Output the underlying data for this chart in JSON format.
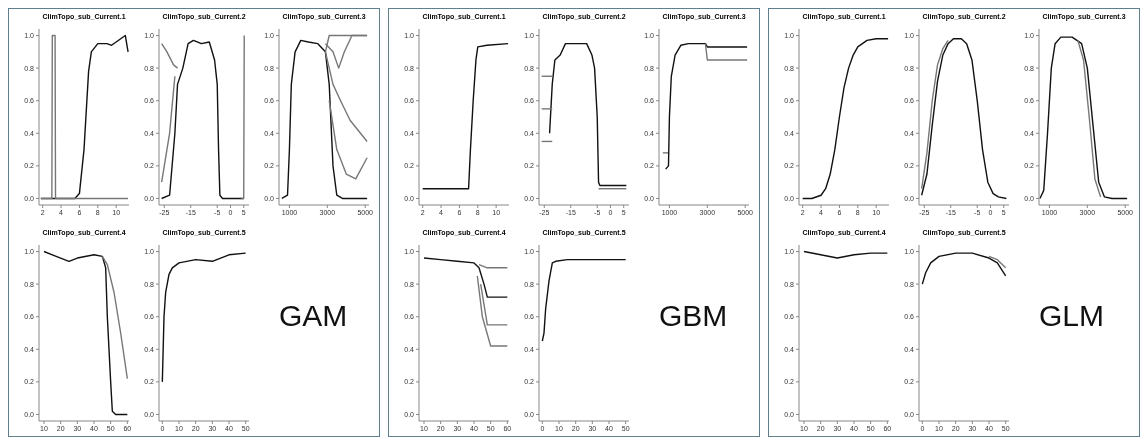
{
  "chart_data": [
    {
      "type": "line",
      "title": "ClimTopo_sub_Current.1",
      "xlim": [
        1.6,
        11.4
      ],
      "xticks": [
        2,
        4,
        6,
        8,
        10
      ],
      "ylim": [
        -0.04,
        1.04
      ],
      "yticks": [
        {
          "value": 0,
          "label": "0.0"
        },
        {
          "value": 0.2,
          "label": "0.2"
        },
        {
          "value": 0.4,
          "label": "0.4"
        },
        {
          "value": 0.6,
          "label": "0.6"
        },
        {
          "value": 0.8,
          "label": "0.8"
        },
        {
          "value": 1,
          "label": "1.0"
        }
      ],
      "series": [
        {
          "color": "#111111",
          "x": [
            1.8,
            5.5,
            6,
            6.5,
            7,
            7.3,
            8,
            9,
            9.5,
            10.5,
            11,
            11.3
          ],
          "values": [
            0,
            0,
            0.03,
            0.3,
            0.78,
            0.9,
            0.95,
            0.95,
            0.94,
            0.98,
            1.0,
            0.9
          ]
        },
        {
          "color": "#777777",
          "x": [
            1.8,
            3.0,
            3.05,
            3.35,
            3.4,
            11.3
          ],
          "values": [
            0,
            0,
            1,
            1,
            0,
            0
          ]
        }
      ]
    },
    {
      "type": "line",
      "title": "ClimTopo_sub_Current.2",
      "xlim": [
        -27,
        7
      ],
      "xticks": [
        -25,
        -15,
        -5,
        0,
        5
      ],
      "ylim": [
        -0.04,
        1.04
      ],
      "yticks": [
        {
          "value": 0,
          "label": "0.0"
        },
        {
          "value": 0.2,
          "label": "0.2"
        },
        {
          "value": 0.4,
          "label": "0.4"
        },
        {
          "value": 0.6,
          "label": "0.6"
        },
        {
          "value": 0.8,
          "label": "0.8"
        },
        {
          "value": 1,
          "label": "1.0"
        }
      ],
      "series": [
        {
          "color": "#111111",
          "x": [
            -26,
            -23,
            -21,
            -20,
            -18,
            -16,
            -14,
            -11,
            -8,
            -6,
            -5,
            -4.5,
            -4,
            -3,
            5
          ],
          "values": [
            0,
            0.02,
            0.4,
            0.7,
            0.8,
            0.95,
            0.97,
            0.95,
            0.96,
            0.85,
            0.7,
            0.3,
            0.02,
            0,
            0
          ]
        },
        {
          "color": "#777777",
          "x": [
            -26,
            -24,
            -21.5,
            -20
          ],
          "values": [
            0.95,
            0.9,
            0.82,
            0.8
          ]
        },
        {
          "color": "#777777",
          "x": [
            -26,
            -23,
            -21
          ],
          "values": [
            0.1,
            0.4,
            0.75
          ]
        },
        {
          "color": "#777777",
          "x": [
            4,
            5,
            5.2
          ],
          "values": [
            0,
            0,
            1
          ]
        }
      ]
    },
    {
      "type": "line",
      "title": "ClimTopo_sub_Current.3",
      "xlim": [
        450,
        5200
      ],
      "xticks": [
        1000,
        3000,
        5000
      ],
      "ylim": [
        -0.04,
        1.04
      ],
      "yticks": [
        {
          "value": 0,
          "label": "0.0"
        },
        {
          "value": 0.2,
          "label": "0.2"
        },
        {
          "value": 0.4,
          "label": "0.4"
        },
        {
          "value": 0.6,
          "label": "0.6"
        },
        {
          "value": 0.8,
          "label": "0.8"
        },
        {
          "value": 1,
          "label": "1.0"
        }
      ],
      "series": [
        {
          "color": "#111111",
          "x": [
            600,
            900,
            1000,
            1100,
            1300,
            1600,
            2000,
            2500,
            2900,
            3100,
            3300,
            3500,
            3800,
            5100
          ],
          "values": [
            0,
            0.02,
            0.3,
            0.7,
            0.9,
            0.97,
            0.96,
            0.95,
            0.9,
            0.7,
            0.2,
            0.02,
            0,
            0
          ]
        },
        {
          "color": "#777777",
          "x": [
            2900,
            3100,
            4000,
            5100
          ],
          "values": [
            0.9,
            1.0,
            1.0,
            1.0
          ]
        },
        {
          "color": "#777777",
          "x": [
            2900,
            3300,
            3600,
            3900,
            4300,
            5100
          ],
          "values": [
            0.95,
            0.9,
            0.8,
            0.9,
            1.0,
            1.0
          ]
        },
        {
          "color": "#777777",
          "x": [
            2900,
            3300,
            3700,
            4200,
            5100
          ],
          "values": [
            0.9,
            0.7,
            0.6,
            0.48,
            0.35
          ]
        },
        {
          "color": "#777777",
          "x": [
            3100,
            3500,
            4000,
            4500,
            5100
          ],
          "values": [
            0.6,
            0.3,
            0.15,
            0.12,
            0.25
          ]
        }
      ]
    },
    {
      "type": "line",
      "title": "ClimTopo_sub_Current.4",
      "xlim": [
        7,
        61
      ],
      "xticks": [
        10,
        20,
        30,
        40,
        50,
        60
      ],
      "ylim": [
        -0.04,
        1.04
      ],
      "yticks": [
        {
          "value": 0,
          "label": "0.0"
        },
        {
          "value": 0.2,
          "label": "0.2"
        },
        {
          "value": 0.4,
          "label": "0.4"
        },
        {
          "value": 0.6,
          "label": "0.6"
        },
        {
          "value": 0.8,
          "label": "0.8"
        },
        {
          "value": 1,
          "label": "1.0"
        }
      ],
      "series": [
        {
          "color": "#111111",
          "x": [
            10,
            15,
            20,
            25,
            30,
            40,
            45,
            47,
            48,
            50,
            51,
            53,
            60
          ],
          "values": [
            1.0,
            0.98,
            0.96,
            0.94,
            0.96,
            0.98,
            0.97,
            0.9,
            0.6,
            0.2,
            0.02,
            0,
            0
          ]
        },
        {
          "color": "#777777",
          "x": [
            45,
            48,
            52,
            56,
            60
          ],
          "values": [
            0.97,
            0.92,
            0.75,
            0.5,
            0.22
          ]
        }
      ]
    },
    {
      "type": "line",
      "title": "ClimTopo_sub_Current.5",
      "xlim": [
        -2,
        52
      ],
      "xticks": [
        0,
        10,
        20,
        30,
        40,
        50
      ],
      "ylim": [
        -0.04,
        1.04
      ],
      "yticks": [
        {
          "value": 0,
          "label": "0.0"
        },
        {
          "value": 0.2,
          "label": "0.2"
        },
        {
          "value": 0.4,
          "label": "0.4"
        },
        {
          "value": 0.6,
          "label": "0.6"
        },
        {
          "value": 0.8,
          "label": "0.8"
        },
        {
          "value": 1,
          "label": "1.0"
        }
      ],
      "series": [
        {
          "color": "#111111",
          "x": [
            0,
            0.5,
            1,
            2,
            4,
            6,
            10,
            20,
            30,
            40,
            50
          ],
          "values": [
            0.2,
            0.4,
            0.6,
            0.75,
            0.86,
            0.9,
            0.93,
            0.95,
            0.94,
            0.98,
            0.99
          ]
        }
      ]
    },
    {
      "type": "other",
      "annotations": [
        "GAM"
      ]
    },
    {
      "type": "line",
      "title": "ClimTopo_sub_Current.1",
      "xlim": [
        1.6,
        11.4
      ],
      "xticks": [
        2,
        4,
        6,
        8,
        10
      ],
      "ylim": [
        -0.04,
        1.04
      ],
      "yticks": [
        {
          "value": 0,
          "label": "0.0"
        },
        {
          "value": 0.2,
          "label": "0.2"
        },
        {
          "value": 0.4,
          "label": "0.4"
        },
        {
          "value": 0.6,
          "label": "0.6"
        },
        {
          "value": 0.8,
          "label": "0.8"
        },
        {
          "value": 1,
          "label": "1.0"
        }
      ],
      "series": [
        {
          "color": "#111111",
          "x": [
            2,
            7,
            7.2,
            7.5,
            7.8,
            8,
            9,
            11.3
          ],
          "values": [
            0.06,
            0.06,
            0.3,
            0.6,
            0.85,
            0.93,
            0.94,
            0.95
          ]
        }
      ]
    },
    {
      "type": "line",
      "title": "ClimTopo_sub_Current.2",
      "xlim": [
        -27,
        7
      ],
      "xticks": [
        -25,
        -15,
        -5,
        0,
        5
      ],
      "ylim": [
        -0.04,
        1.04
      ],
      "yticks": [
        {
          "value": 0,
          "label": "0.0"
        },
        {
          "value": 0.2,
          "label": "0.2"
        },
        {
          "value": 0.4,
          "label": "0.4"
        },
        {
          "value": 0.6,
          "label": "0.6"
        },
        {
          "value": 0.8,
          "label": "0.8"
        },
        {
          "value": 1,
          "label": "1.0"
        }
      ],
      "series": [
        {
          "color": "#111111",
          "x": [
            -23,
            -22,
            -21,
            -19,
            -17,
            -12,
            -9,
            -7,
            -6,
            -5,
            -4.5,
            -4,
            6
          ],
          "values": [
            0.4,
            0.7,
            0.85,
            0.88,
            0.95,
            0.95,
            0.95,
            0.88,
            0.8,
            0.5,
            0.1,
            0.08,
            0.08
          ]
        },
        {
          "color": "#777777",
          "x": [
            -26,
            -22
          ],
          "values": [
            0.75,
            0.75
          ]
        },
        {
          "color": "#777777",
          "x": [
            -26,
            -22
          ],
          "values": [
            0.55,
            0.55
          ]
        },
        {
          "color": "#777777",
          "x": [
            -26,
            -22
          ],
          "values": [
            0.35,
            0.35
          ]
        },
        {
          "color": "#777777",
          "x": [
            -4.5,
            6
          ],
          "values": [
            0.06,
            0.06
          ]
        }
      ]
    },
    {
      "type": "line",
      "title": "ClimTopo_sub_Current.3",
      "xlim": [
        450,
        5200
      ],
      "xticks": [
        1000,
        3000,
        5000
      ],
      "ylim": [
        -0.04,
        1.04
      ],
      "yticks": [
        {
          "value": 0,
          "label": "0.0"
        },
        {
          "value": 0.2,
          "label": "0.2"
        },
        {
          "value": 0.4,
          "label": "0.4"
        },
        {
          "value": 0.6,
          "label": "0.6"
        },
        {
          "value": 0.8,
          "label": "0.8"
        },
        {
          "value": 1,
          "label": "1.0"
        }
      ],
      "series": [
        {
          "color": "#111111",
          "x": [
            800,
            950,
            1000,
            1100,
            1300,
            1600,
            2000,
            2900,
            3000,
            5100
          ],
          "values": [
            0.18,
            0.2,
            0.5,
            0.75,
            0.88,
            0.94,
            0.95,
            0.95,
            0.93,
            0.93
          ]
        },
        {
          "color": "#777777",
          "x": [
            2900,
            3000,
            5100
          ],
          "values": [
            0.95,
            0.85,
            0.85
          ]
        },
        {
          "color": "#777777",
          "x": [
            650,
            930
          ],
          "values": [
            0.28,
            0.28
          ]
        }
      ]
    },
    {
      "type": "line",
      "title": "ClimTopo_sub_Current.4",
      "xlim": [
        7,
        61
      ],
      "xticks": [
        10,
        20,
        30,
        40,
        50,
        60
      ],
      "ylim": [
        -0.04,
        1.04
      ],
      "yticks": [
        {
          "value": 0,
          "label": "0.0"
        },
        {
          "value": 0.2,
          "label": "0.2"
        },
        {
          "value": 0.4,
          "label": "0.4"
        },
        {
          "value": 0.6,
          "label": "0.6"
        },
        {
          "value": 0.8,
          "label": "0.8"
        },
        {
          "value": 1,
          "label": "1.0"
        }
      ],
      "series": [
        {
          "color": "#111111",
          "x": [
            10,
            20,
            30,
            40,
            43,
            46,
            48,
            60
          ],
          "values": [
            0.96,
            0.95,
            0.94,
            0.93,
            0.9,
            0.8,
            0.72,
            0.72
          ]
        },
        {
          "color": "#777777",
          "x": [
            43,
            48,
            60
          ],
          "values": [
            0.92,
            0.9,
            0.9
          ]
        },
        {
          "color": "#777777",
          "x": [
            42,
            45,
            50,
            60
          ],
          "values": [
            0.85,
            0.6,
            0.42,
            0.42
          ]
        },
        {
          "color": "#777777",
          "x": [
            44,
            48,
            60
          ],
          "values": [
            0.8,
            0.55,
            0.55
          ]
        }
      ]
    },
    {
      "type": "line",
      "title": "ClimTopo_sub_Current.5",
      "xlim": [
        -2,
        52
      ],
      "xticks": [
        0,
        10,
        20,
        30,
        40,
        50
      ],
      "ylim": [
        -0.04,
        1.04
      ],
      "yticks": [
        {
          "value": 0,
          "label": "0.0"
        },
        {
          "value": 0.2,
          "label": "0.2"
        },
        {
          "value": 0.4,
          "label": "0.4"
        },
        {
          "value": 0.6,
          "label": "0.6"
        },
        {
          "value": 0.8,
          "label": "0.8"
        },
        {
          "value": 1,
          "label": "1.0"
        }
      ],
      "series": [
        {
          "color": "#111111",
          "x": [
            0,
            1,
            2,
            4,
            6,
            8,
            15,
            50
          ],
          "values": [
            0.45,
            0.5,
            0.65,
            0.82,
            0.93,
            0.94,
            0.95,
            0.95
          ]
        }
      ]
    },
    {
      "type": "other",
      "annotations": [
        "GBM"
      ]
    },
    {
      "type": "line",
      "title": "ClimTopo_sub_Current.1",
      "xlim": [
        1.6,
        11.4
      ],
      "xticks": [
        2,
        4,
        6,
        8,
        10
      ],
      "ylim": [
        -0.04,
        1.04
      ],
      "yticks": [
        {
          "value": 0,
          "label": "0.0"
        },
        {
          "value": 0.2,
          "label": "0.2"
        },
        {
          "value": 0.4,
          "label": "0.4"
        },
        {
          "value": 0.6,
          "label": "0.6"
        },
        {
          "value": 0.8,
          "label": "0.8"
        },
        {
          "value": 1,
          "label": "1.0"
        }
      ],
      "series": [
        {
          "color": "#111111",
          "x": [
            2,
            3,
            4,
            4.5,
            5,
            5.5,
            6,
            6.5,
            7,
            7.5,
            8,
            9,
            10,
            11.3
          ],
          "values": [
            0,
            0,
            0.02,
            0.06,
            0.15,
            0.3,
            0.5,
            0.68,
            0.8,
            0.88,
            0.93,
            0.97,
            0.98,
            0.98
          ]
        }
      ]
    },
    {
      "type": "line",
      "title": "ClimTopo_sub_Current.2",
      "xlim": [
        -27,
        7
      ],
      "xticks": [
        -25,
        -15,
        -5,
        0,
        5
      ],
      "ylim": [
        -0.04,
        1.04
      ],
      "yticks": [
        {
          "value": 0,
          "label": "0.0"
        },
        {
          "value": 0.2,
          "label": "0.2"
        },
        {
          "value": 0.4,
          "label": "0.4"
        },
        {
          "value": 0.6,
          "label": "0.6"
        },
        {
          "value": 0.8,
          "label": "0.8"
        },
        {
          "value": 1,
          "label": "1.0"
        }
      ],
      "series": [
        {
          "color": "#111111",
          "x": [
            -26,
            -24,
            -22,
            -20,
            -18,
            -16,
            -14,
            -11,
            -9,
            -7,
            -5,
            -3,
            -1,
            1,
            3,
            6
          ],
          "values": [
            0.02,
            0.15,
            0.45,
            0.72,
            0.88,
            0.95,
            0.98,
            0.98,
            0.95,
            0.85,
            0.6,
            0.3,
            0.1,
            0.03,
            0.01,
            0
          ]
        },
        {
          "color": "#777777",
          "x": [
            -26,
            -24,
            -22,
            -20,
            -18,
            -16
          ],
          "values": [
            0.06,
            0.28,
            0.6,
            0.82,
            0.92,
            0.97
          ]
        }
      ]
    },
    {
      "type": "line",
      "title": "ClimTopo_sub_Current.3",
      "xlim": [
        450,
        5200
      ],
      "xticks": [
        1000,
        3000,
        5000
      ],
      "ylim": [
        -0.04,
        1.04
      ],
      "yticks": [
        {
          "value": 0,
          "label": "0.0"
        },
        {
          "value": 0.2,
          "label": "0.2"
        },
        {
          "value": 0.4,
          "label": "0.4"
        },
        {
          "value": 0.6,
          "label": "0.6"
        },
        {
          "value": 0.8,
          "label": "0.8"
        },
        {
          "value": 1,
          "label": "1.0"
        }
      ],
      "series": [
        {
          "color": "#111111",
          "x": [
            500,
            700,
            900,
            1100,
            1300,
            1600,
            2200,
            2700,
            3000,
            3300,
            3600,
            3900,
            4300,
            5100
          ],
          "values": [
            0,
            0.05,
            0.4,
            0.8,
            0.95,
            0.99,
            0.99,
            0.95,
            0.8,
            0.45,
            0.1,
            0.01,
            0,
            0
          ]
        },
        {
          "color": "#777777",
          "x": [
            2500,
            2800,
            3100,
            3400,
            3700
          ],
          "values": [
            0.97,
            0.85,
            0.5,
            0.12,
            0.01
          ]
        }
      ]
    },
    {
      "type": "line",
      "title": "ClimTopo_sub_Current.4",
      "xlim": [
        7,
        61
      ],
      "xticks": [
        10,
        20,
        30,
        40,
        50,
        60
      ],
      "ylim": [
        -0.04,
        1.04
      ],
      "yticks": [
        {
          "value": 0,
          "label": "0.0"
        },
        {
          "value": 0.2,
          "label": "0.2"
        },
        {
          "value": 0.4,
          "label": "0.4"
        },
        {
          "value": 0.6,
          "label": "0.6"
        },
        {
          "value": 0.8,
          "label": "0.8"
        },
        {
          "value": 1,
          "label": "1.0"
        }
      ],
      "series": [
        {
          "color": "#111111",
          "x": [
            10,
            20,
            30,
            40,
            50,
            60
          ],
          "values": [
            1.0,
            0.98,
            0.96,
            0.98,
            0.99,
            0.99
          ]
        }
      ]
    },
    {
      "type": "line",
      "title": "ClimTopo_sub_Current.5",
      "xlim": [
        -2,
        52
      ],
      "xticks": [
        0,
        10,
        20,
        30,
        40,
        50
      ],
      "ylim": [
        -0.04,
        1.04
      ],
      "yticks": [
        {
          "value": 0,
          "label": "0.0"
        },
        {
          "value": 0.2,
          "label": "0.2"
        },
        {
          "value": 0.4,
          "label": "0.4"
        },
        {
          "value": 0.6,
          "label": "0.6"
        },
        {
          "value": 0.8,
          "label": "0.8"
        },
        {
          "value": 1,
          "label": "1.0"
        }
      ],
      "series": [
        {
          "color": "#111111",
          "x": [
            0,
            2,
            5,
            10,
            20,
            30,
            40,
            45,
            50
          ],
          "values": [
            0.8,
            0.87,
            0.93,
            0.97,
            0.99,
            0.99,
            0.96,
            0.93,
            0.85
          ]
        },
        {
          "color": "#777777",
          "x": [
            40,
            45,
            50
          ],
          "values": [
            0.97,
            0.95,
            0.9
          ]
        }
      ]
    },
    {
      "type": "other",
      "annotations": [
        "GLM"
      ]
    }
  ]
}
